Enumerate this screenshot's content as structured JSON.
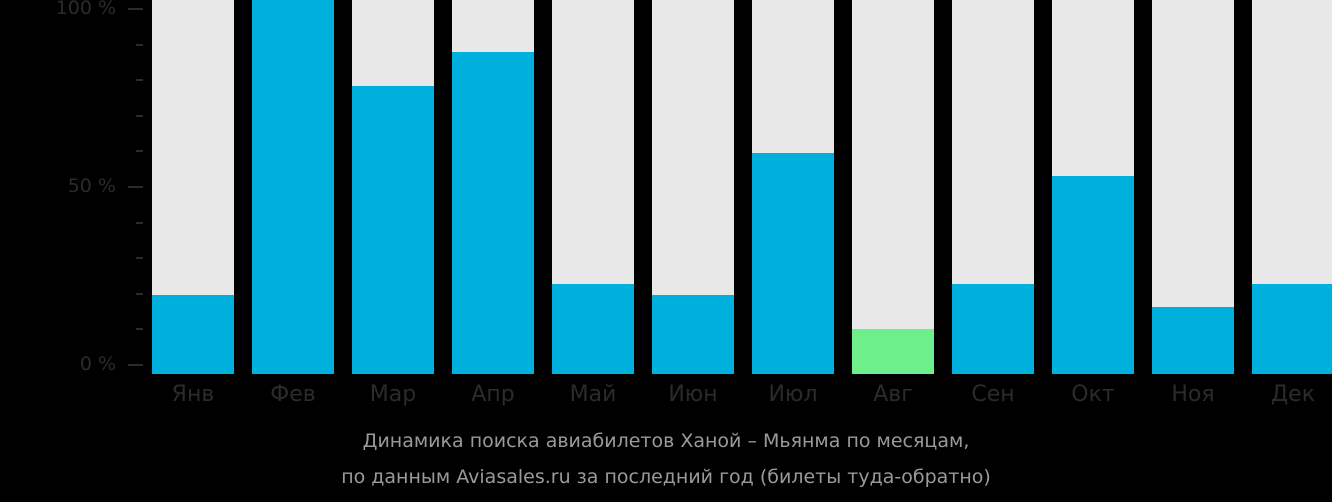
{
  "chart_data": {
    "type": "bar",
    "title": "Динамика поиска авиабилетов Ханой – Мьянма по месяцам,",
    "subtitle": "по данным Aviasales.ru за последний год (билеты туда-обратно)",
    "xlabel": "",
    "ylabel": "",
    "ylim": [
      0,
      100
    ],
    "y_ticks": [
      "100 %",
      "50 %",
      "0 %"
    ],
    "categories": [
      "Янв",
      "Фев",
      "Мар",
      "Апр",
      "Май",
      "Июн",
      "Июл",
      "Авг",
      "Сен",
      "Окт",
      "Ноя",
      "Дек"
    ],
    "values": [
      21,
      100,
      77,
      86,
      24,
      21,
      59,
      12,
      24,
      53,
      18,
      24
    ],
    "highlight_index": 7,
    "grid": false,
    "legend": null
  },
  "colors": {
    "bar": "#00b0dc",
    "highlight": "#6df089",
    "track": "#e8e8e8",
    "background": "#000000",
    "axis_text": "#2b2b2b",
    "caption_text": "#9a9a9a"
  }
}
